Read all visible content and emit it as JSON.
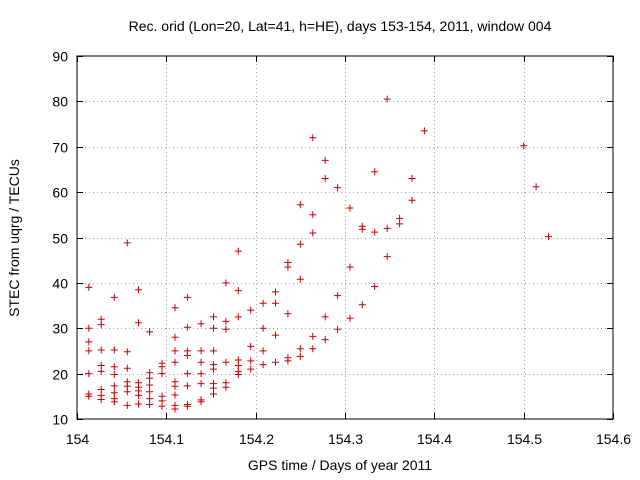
{
  "chart_data": {
    "type": "scatter",
    "title": "Rec. orid (Lon=20, Lat=41, h=HE), days 153-154, 2011, window 004",
    "xlabel": "GPS time / Days of year 2011",
    "ylabel": "STEC from uqrg / TECUs",
    "xlim": [
      154,
      154.6
    ],
    "ylim": [
      10,
      90
    ],
    "xticks": [
      154,
      154.1,
      154.2,
      154.3,
      154.4,
      154.5,
      154.6
    ],
    "xtick_labels": [
      "154",
      "154.1",
      "154.2",
      "154.3",
      "154.4",
      "154.5",
      "154.6"
    ],
    "yticks": [
      10,
      20,
      30,
      40,
      50,
      60,
      70,
      80,
      90
    ],
    "ytick_labels": [
      "10",
      "20",
      "30",
      "40",
      "50",
      "60",
      "70",
      "80",
      "90"
    ],
    "grid": true,
    "marker": "+",
    "color": "#cc0000",
    "series": [
      {
        "name": "STEC",
        "points": [
          [
            154.0132,
            39.0
          ],
          [
            154.0132,
            30.0
          ],
          [
            154.0132,
            27.0
          ],
          [
            154.0132,
            25.0
          ],
          [
            154.0132,
            20.0
          ],
          [
            154.0132,
            15.5
          ],
          [
            154.0132,
            15.0
          ],
          [
            154.0271,
            32.0
          ],
          [
            154.0271,
            30.8
          ],
          [
            154.0271,
            25.2
          ],
          [
            154.0271,
            21.8
          ],
          [
            154.0271,
            20.5
          ],
          [
            154.0271,
            16.5
          ],
          [
            154.0271,
            15.2
          ],
          [
            154.0271,
            14.3
          ],
          [
            154.0417,
            36.8
          ],
          [
            154.0417,
            25.2
          ],
          [
            154.0417,
            21.5
          ],
          [
            154.0417,
            19.8
          ],
          [
            154.0417,
            17.3
          ],
          [
            154.0417,
            15.8
          ],
          [
            154.0417,
            14.5
          ],
          [
            154.0417,
            13.8
          ],
          [
            154.0563,
            48.8
          ],
          [
            154.0563,
            24.8
          ],
          [
            154.0563,
            21.2
          ],
          [
            154.0563,
            18.2
          ],
          [
            154.0563,
            17.2
          ],
          [
            154.0563,
            16.0
          ],
          [
            154.0563,
            13.0
          ],
          [
            154.0688,
            38.5
          ],
          [
            154.0688,
            31.2
          ],
          [
            154.0688,
            18.0
          ],
          [
            154.0688,
            17.0
          ],
          [
            154.0688,
            16.2
          ],
          [
            154.0688,
            15.2
          ],
          [
            154.0688,
            13.3
          ],
          [
            154.0813,
            29.2
          ],
          [
            154.0813,
            20.2
          ],
          [
            154.0813,
            19.0
          ],
          [
            154.0813,
            17.5
          ],
          [
            154.0813,
            16.0
          ],
          [
            154.0813,
            14.5
          ],
          [
            154.0813,
            13.2
          ],
          [
            154.0952,
            22.3
          ],
          [
            154.0952,
            21.5
          ],
          [
            154.0952,
            20.0
          ],
          [
            154.0952,
            15.0
          ],
          [
            154.0952,
            14.0
          ],
          [
            154.0952,
            12.8
          ],
          [
            154.1097,
            34.5
          ],
          [
            154.1097,
            28.0
          ],
          [
            154.1097,
            25.0
          ],
          [
            154.1097,
            22.5
          ],
          [
            154.1097,
            18.2
          ],
          [
            154.1097,
            17.2
          ],
          [
            154.1097,
            15.3
          ],
          [
            154.1097,
            13.0
          ],
          [
            154.1097,
            12.2
          ],
          [
            154.1236,
            36.8
          ],
          [
            154.1236,
            30.2
          ],
          [
            154.1236,
            25.0
          ],
          [
            154.1236,
            24.0
          ],
          [
            154.1236,
            20.0
          ],
          [
            154.1236,
            17.3
          ],
          [
            154.1236,
            13.2
          ],
          [
            154.1236,
            12.8
          ],
          [
            154.1389,
            31.0
          ],
          [
            154.1389,
            25.0
          ],
          [
            154.1389,
            22.5
          ],
          [
            154.1389,
            20.0
          ],
          [
            154.1389,
            17.8
          ],
          [
            154.1389,
            14.2
          ],
          [
            154.1389,
            13.8
          ],
          [
            154.1528,
            32.5
          ],
          [
            154.1528,
            30.0
          ],
          [
            154.1528,
            25.0
          ],
          [
            154.1528,
            22.0
          ],
          [
            154.1528,
            21.0
          ],
          [
            154.1528,
            17.8
          ],
          [
            154.1528,
            16.8
          ],
          [
            154.1528,
            15.5
          ],
          [
            154.1667,
            40.0
          ],
          [
            154.1667,
            31.5
          ],
          [
            154.1667,
            29.8
          ],
          [
            154.1667,
            22.5
          ],
          [
            154.1667,
            18.0
          ],
          [
            154.1667,
            17.0
          ],
          [
            154.1806,
            47.0
          ],
          [
            154.1806,
            38.3
          ],
          [
            154.1806,
            32.5
          ],
          [
            154.1806,
            23.0
          ],
          [
            154.1806,
            21.8
          ],
          [
            154.1806,
            20.5
          ],
          [
            154.1806,
            19.8
          ],
          [
            154.1944,
            34.0
          ],
          [
            154.1944,
            26.0
          ],
          [
            154.1944,
            22.8
          ],
          [
            154.1944,
            21.0
          ],
          [
            154.2083,
            35.5
          ],
          [
            154.2083,
            30.0
          ],
          [
            154.2083,
            25.0
          ],
          [
            154.2083,
            22.0
          ],
          [
            154.2222,
            38.0
          ],
          [
            154.2222,
            35.5
          ],
          [
            154.2222,
            28.5
          ],
          [
            154.2222,
            22.5
          ],
          [
            154.2361,
            44.5
          ],
          [
            154.2361,
            43.5
          ],
          [
            154.2361,
            33.2
          ],
          [
            154.2361,
            23.5
          ],
          [
            154.2361,
            22.8
          ],
          [
            154.25,
            57.2
          ],
          [
            154.25,
            48.5
          ],
          [
            154.25,
            40.8
          ],
          [
            154.25,
            25.5
          ],
          [
            154.25,
            23.8
          ],
          [
            154.2639,
            72.0
          ],
          [
            154.2639,
            55.0
          ],
          [
            154.2639,
            51.0
          ],
          [
            154.2639,
            28.2
          ],
          [
            154.2639,
            25.5
          ],
          [
            154.2778,
            67.0
          ],
          [
            154.2778,
            63.0
          ],
          [
            154.2778,
            32.5
          ],
          [
            154.2778,
            27.5
          ],
          [
            154.2917,
            61.0
          ],
          [
            154.2917,
            37.2
          ],
          [
            154.2917,
            29.8
          ],
          [
            154.3056,
            56.5
          ],
          [
            154.3056,
            43.5
          ],
          [
            154.3056,
            32.2
          ],
          [
            154.3194,
            52.5
          ],
          [
            154.3194,
            51.8
          ],
          [
            154.3194,
            35.2
          ],
          [
            154.3333,
            64.5
          ],
          [
            154.3333,
            51.2
          ],
          [
            154.3333,
            39.2
          ],
          [
            154.3472,
            80.5
          ],
          [
            154.3472,
            52.0
          ],
          [
            154.3472,
            45.8
          ],
          [
            154.3611,
            54.2
          ],
          [
            154.3611,
            53.0
          ],
          [
            154.375,
            63.0
          ],
          [
            154.375,
            58.2
          ],
          [
            154.3889,
            73.5
          ],
          [
            154.5,
            70.2
          ],
          [
            154.5139,
            61.2
          ],
          [
            154.5278,
            50.2
          ]
        ]
      }
    ]
  }
}
